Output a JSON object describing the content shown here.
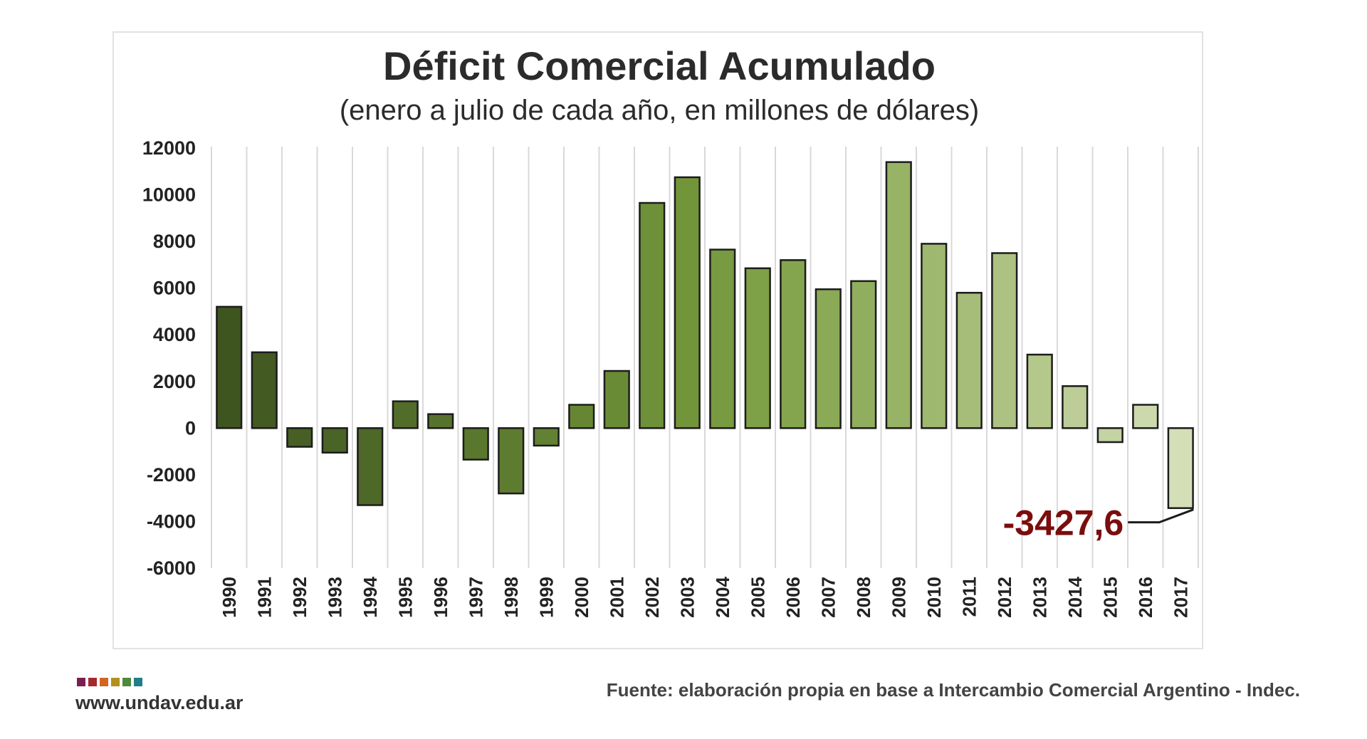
{
  "chart_data": {
    "type": "bar",
    "title": "Déficit Comercial Acumulado",
    "subtitle": "(enero a julio de cada año, en millones de dólares)",
    "xlabel": "",
    "ylabel": "",
    "ylim": [
      -6000,
      12000
    ],
    "yticks": [
      12000,
      10000,
      8000,
      6000,
      4000,
      2000,
      0,
      -2000,
      -4000,
      -6000
    ],
    "grid": "vertical",
    "legend": "none",
    "categories": [
      "1990",
      "1991",
      "1992",
      "1993",
      "1994",
      "1995",
      "1996",
      "1997",
      "1998",
      "1999",
      "2000",
      "2001",
      "2002",
      "2003",
      "2004",
      "2005",
      "2006",
      "2007",
      "2008",
      "2009",
      "2010",
      "2011",
      "2012",
      "2013",
      "2014",
      "2015",
      "2016",
      "2017"
    ],
    "values": [
      5200,
      3250,
      -800,
      -1050,
      -3300,
      1150,
      600,
      -1350,
      -2800,
      -750,
      1000,
      2450,
      9650,
      10750,
      7650,
      6850,
      7200,
      5950,
      6300,
      11400,
      7900,
      5800,
      7500,
      3150,
      1800,
      -600,
      1000,
      -3427.6
    ],
    "bar_colors": [
      "#3f5520",
      "#435a22",
      "#475f24",
      "#4a6326",
      "#4e6828",
      "#526d2a",
      "#56722c",
      "#5a772e",
      "#5e7c30",
      "#628132",
      "#668634",
      "#6a8b36",
      "#6e9038",
      "#72953a",
      "#789a40",
      "#7ea046",
      "#84a54e",
      "#8aaa56",
      "#90ae5e",
      "#97b366",
      "#9eb86f",
      "#a5bd78",
      "#adc282",
      "#b4c88c",
      "#bccd97",
      "#c4d3a2",
      "#ccd9ad",
      "#d4dfb8"
    ],
    "annotation": {
      "label": "-3427,6",
      "category": "2017",
      "color": "#7b0d0d"
    }
  },
  "footer": {
    "logo_colors": [
      "#7a1f4f",
      "#a5282f",
      "#d2661f",
      "#b58f1f",
      "#4e8a3a",
      "#1e7f8a"
    ],
    "url": "www.undav.edu.ar",
    "source": "Fuente: elaboración propia en base a Intercambio Comercial Argentino - Indec."
  }
}
